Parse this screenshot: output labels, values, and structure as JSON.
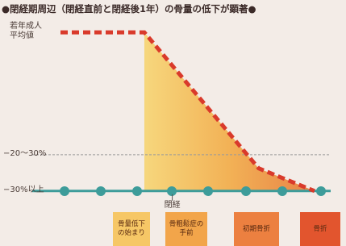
{
  "chart_data": {
    "type": "line",
    "title": "●閉経期周辺（閉経直前と閉経後1年）の骨量の低下が顕著●",
    "x": [
      0,
      33,
      78,
      100
    ],
    "series": [
      {
        "color": "#d93a2b",
        "values": [
          0,
          0,
          -30,
          -35
        ]
      }
    ],
    "xlim": [
      0,
      100
    ],
    "ylim": [
      -45,
      5
    ],
    "yticks": [
      {
        "value": 0,
        "label": "若年成人平均値"
      },
      {
        "value": -27,
        "label": "−20〜30%"
      },
      {
        "value": -35,
        "label": "−30%以上"
      }
    ],
    "x_marker": {
      "value": 44,
      "label": "閉経"
    },
    "stages": [
      "骨量低下の始まり",
      "骨粗鬆症の手前",
      "初期骨折",
      "骨折"
    ],
    "grid": true
  }
}
